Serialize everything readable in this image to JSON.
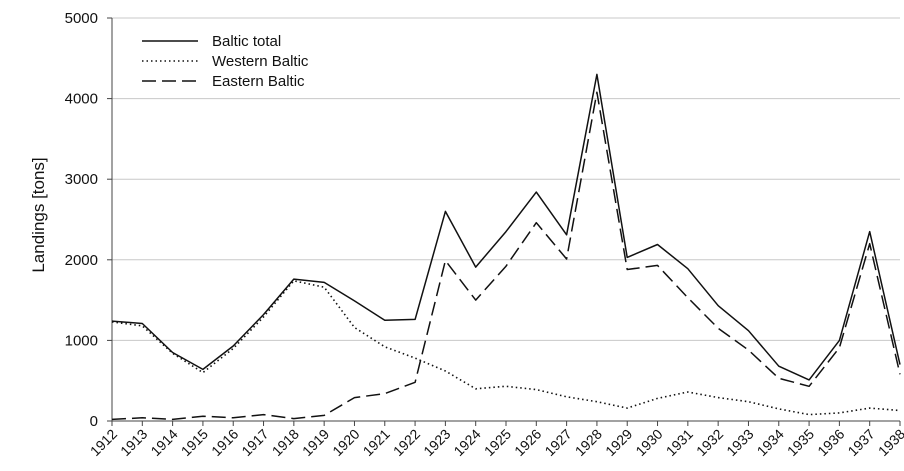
{
  "chart_data": {
    "type": "line",
    "ylabel": "Landings [tons]",
    "xlabel": "",
    "ylim": [
      0,
      5000
    ],
    "yticks": [
      0,
      1000,
      2000,
      3000,
      4000,
      5000
    ],
    "grid": "horizontal",
    "legend_position": "top-left",
    "x": [
      "1912",
      "1913",
      "1914",
      "1915",
      "1916",
      "1917",
      "1918",
      "1919",
      "1920",
      "1921",
      "1922",
      "1923",
      "1924",
      "1925",
      "1926",
      "1927",
      "1928",
      "1929",
      "1930",
      "1931",
      "1932",
      "1933",
      "1934",
      "1935",
      "1936",
      "1937",
      "1938"
    ],
    "series": [
      {
        "name": "Baltic total",
        "line_style": "solid",
        "color": "#111111",
        "values": [
          1240,
          1210,
          850,
          640,
          930,
          1320,
          1760,
          1720,
          1490,
          1250,
          1260,
          2600,
          1910,
          2350,
          2840,
          2310,
          4300,
          2030,
          2190,
          1890,
          1430,
          1120,
          680,
          510,
          1000,
          2350,
          700
        ]
      },
      {
        "name": "Western Baltic",
        "line_style": "dotted",
        "color": "#111111",
        "values": [
          1230,
          1180,
          840,
          600,
          900,
          1290,
          1740,
          1660,
          1160,
          920,
          780,
          620,
          400,
          430,
          390,
          300,
          240,
          160,
          280,
          360,
          290,
          240,
          150,
          80,
          100,
          160,
          130
        ]
      },
      {
        "name": "Eastern Baltic",
        "line_style": "dashed",
        "color": "#111111",
        "values": [
          20,
          40,
          20,
          60,
          40,
          80,
          30,
          70,
          290,
          340,
          480,
          1990,
          1500,
          1920,
          2460,
          2010,
          4080,
          1880,
          1930,
          1530,
          1150,
          880,
          530,
          430,
          910,
          2200,
          580
        ]
      }
    ]
  }
}
